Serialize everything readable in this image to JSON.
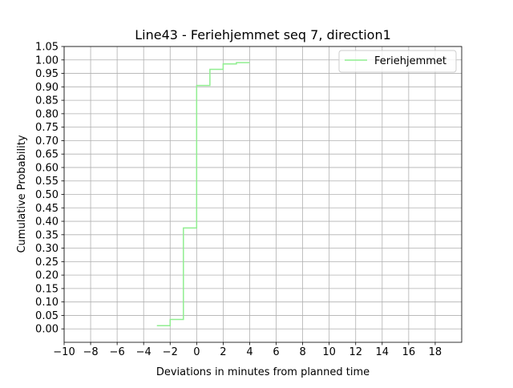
{
  "chart_data": {
    "type": "line",
    "title": "Line43 - Feriehjemmet seq 7, direction1",
    "xlabel": "Deviations in minutes from planned time",
    "ylabel": "Cumulative Probability",
    "xlim": [
      -10,
      20
    ],
    "ylim": [
      -0.05,
      1.05
    ],
    "xticks": [
      -10,
      -8,
      -6,
      -4,
      -2,
      0,
      2,
      4,
      6,
      8,
      10,
      12,
      14,
      16,
      18
    ],
    "xtick_labels": [
      "−10",
      "−8",
      "−6",
      "−4",
      "−2",
      "0",
      "2",
      "4",
      "6",
      "8",
      "10",
      "12",
      "14",
      "16",
      "18"
    ],
    "yticks": [
      0.0,
      0.05,
      0.1,
      0.15,
      0.2,
      0.25,
      0.3,
      0.35,
      0.4,
      0.45,
      0.5,
      0.55,
      0.6,
      0.65,
      0.7,
      0.75,
      0.8,
      0.85,
      0.9,
      0.95,
      1.0,
      1.05
    ],
    "ytick_labels": [
      "0.00",
      "0.05",
      "0.10",
      "0.15",
      "0.20",
      "0.25",
      "0.30",
      "0.35",
      "0.40",
      "0.45",
      "0.50",
      "0.55",
      "0.60",
      "0.65",
      "0.70",
      "0.75",
      "0.80",
      "0.85",
      "0.90",
      "0.95",
      "1.00",
      "1.05"
    ],
    "grid": true,
    "legend_position": "top-right",
    "series": [
      {
        "name": "Feriehjemmet",
        "color": "#90ee90",
        "step": "post",
        "x": [
          -3,
          -2,
          -1,
          0,
          1,
          2,
          3,
          4
        ],
        "y": [
          0.012,
          0.035,
          0.375,
          0.905,
          0.965,
          0.985,
          0.99,
          0.99
        ]
      }
    ]
  }
}
